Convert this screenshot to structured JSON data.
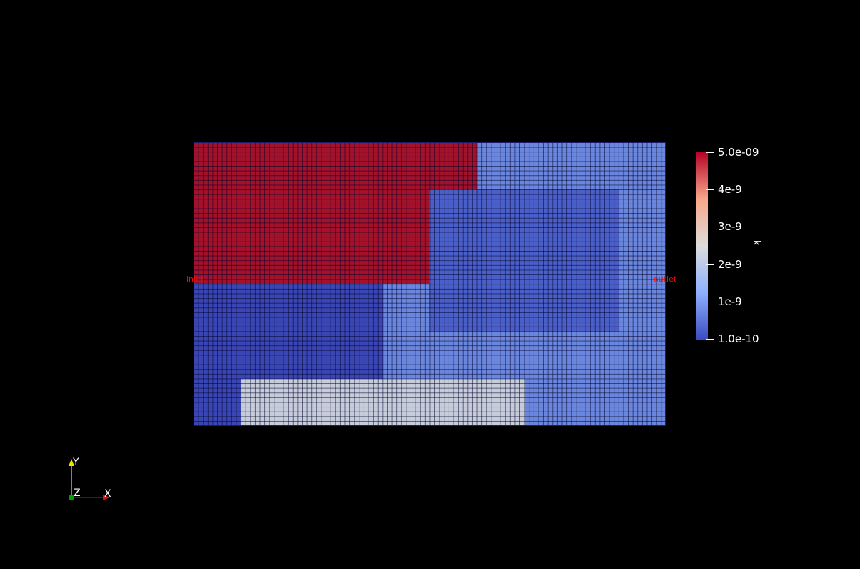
{
  "scene": {
    "background": "#000000",
    "boundary_labels": {
      "inlet": "inlet",
      "outlet": "outlet",
      "color": "#e01010"
    },
    "field_colors": {
      "high": "#a4112a",
      "low_dark": "#3a46b3",
      "low_mid": "#4b5fc8",
      "low_light": "#6a86dd",
      "mid_gray": "#c6ccd9"
    }
  },
  "colorbar": {
    "title": "k",
    "ticks": [
      "5.0e-09",
      "4e-9",
      "3e-9",
      "2e-9",
      "1e-9",
      "1.0e-10"
    ],
    "range": [
      1e-10,
      5e-09
    ],
    "colormap": "cool-to-warm",
    "gradient_stops": [
      "#b40426",
      "#f7a789",
      "#dddcdc",
      "#8db0fe",
      "#3b4cc0"
    ]
  },
  "axes": {
    "x_label": "X",
    "y_label": "Y",
    "z_label": "Z",
    "x_color": "#e01010",
    "y_color": "#e6e600",
    "z_color": "#00a000"
  }
}
